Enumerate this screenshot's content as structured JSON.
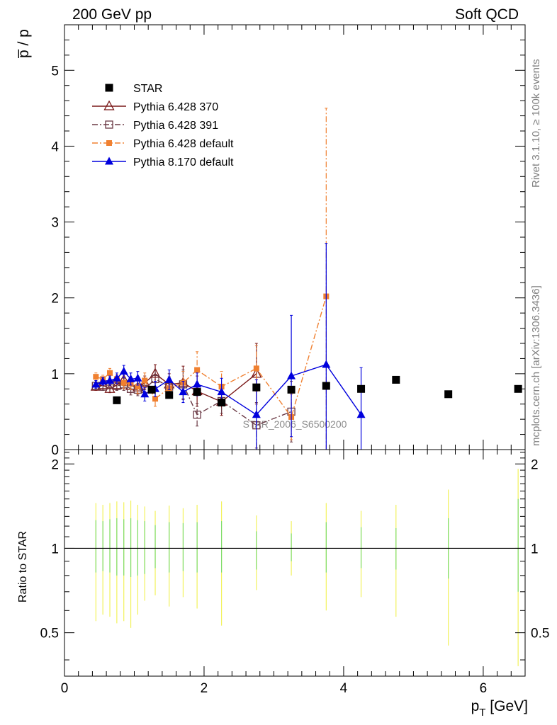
{
  "header": {
    "left": "200 GeV pp",
    "right": "Soft QCD"
  },
  "side_text": {
    "rivet": "Rivet 3.1.10, ≥ 100k events",
    "mcplots": "mcplots.cern.ch [arXiv:1306.3436]"
  },
  "watermark": "STAR_2006_S6500200",
  "chart_data": [
    {
      "type": "line",
      "panel": "main",
      "ylabel": "p̅ / p",
      "ylim": [
        0,
        5.6
      ],
      "xlim": [
        0,
        6.6
      ],
      "yticks": [
        0,
        1,
        2,
        3,
        4,
        5
      ],
      "legend_position": "top-left",
      "series": [
        {
          "name": "STAR",
          "color": "#000000",
          "marker": "filled-square",
          "line": "none",
          "points": [
            {
              "x": 0.75,
              "y": 0.65
            },
            {
              "x": 1.25,
              "y": 0.79
            },
            {
              "x": 1.5,
              "y": 0.72
            },
            {
              "x": 1.9,
              "y": 0.76
            },
            {
              "x": 2.25,
              "y": 0.62
            },
            {
              "x": 2.75,
              "y": 0.82
            },
            {
              "x": 3.25,
              "y": 0.79
            },
            {
              "x": 3.75,
              "y": 0.84
            },
            {
              "x": 4.25,
              "y": 0.8
            },
            {
              "x": 4.75,
              "y": 0.92
            },
            {
              "x": 5.5,
              "y": 0.73
            },
            {
              "x": 6.5,
              "y": 0.8
            }
          ]
        },
        {
          "name": "Pythia 6.428 370",
          "color": "#7a1818",
          "marker": "open-triangle",
          "line": "solid",
          "points": [
            {
              "x": 0.45,
              "y": 0.83,
              "err": 0.05
            },
            {
              "x": 0.55,
              "y": 0.85,
              "err": 0.05
            },
            {
              "x": 0.65,
              "y": 0.8,
              "err": 0.05
            },
            {
              "x": 0.75,
              "y": 0.85,
              "err": 0.06
            },
            {
              "x": 0.85,
              "y": 0.92,
              "err": 0.08
            },
            {
              "x": 0.95,
              "y": 0.84,
              "err": 0.09
            },
            {
              "x": 1.05,
              "y": 0.82,
              "err": 0.09
            },
            {
              "x": 1.15,
              "y": 0.88,
              "err": 0.09
            },
            {
              "x": 1.3,
              "y": 1.0,
              "err": 0.12
            },
            {
              "x": 1.5,
              "y": 0.86,
              "err": 0.14
            },
            {
              "x": 1.7,
              "y": 0.88,
              "err": 0.22
            },
            {
              "x": 1.9,
              "y": 0.77,
              "err": 0.2
            },
            {
              "x": 2.25,
              "y": 0.63,
              "err": 0.18
            },
            {
              "x": 2.75,
              "y": 1.0,
              "err": 0.4
            }
          ]
        },
        {
          "name": "Pythia 6.428 391",
          "color": "#6b3a45",
          "marker": "open-square",
          "line": "dashdot",
          "points": [
            {
              "x": 0.45,
              "y": 0.84,
              "err": 0.05
            },
            {
              "x": 0.55,
              "y": 0.83,
              "err": 0.05
            },
            {
              "x": 0.65,
              "y": 0.86,
              "err": 0.06
            },
            {
              "x": 0.75,
              "y": 0.84,
              "err": 0.06
            },
            {
              "x": 0.85,
              "y": 0.86,
              "err": 0.08
            },
            {
              "x": 0.95,
              "y": 0.8,
              "err": 0.08
            },
            {
              "x": 1.05,
              "y": 0.79,
              "err": 0.08
            },
            {
              "x": 1.15,
              "y": 0.8,
              "err": 0.09
            },
            {
              "x": 1.3,
              "y": 0.93,
              "err": 0.12
            },
            {
              "x": 1.5,
              "y": 0.83,
              "err": 0.13
            },
            {
              "x": 1.7,
              "y": 0.86,
              "err": 0.19
            },
            {
              "x": 1.9,
              "y": 0.46,
              "err": 0.15
            },
            {
              "x": 2.25,
              "y": 0.64,
              "err": 0.16
            },
            {
              "x": 2.75,
              "y": 0.32,
              "err": 0.3
            },
            {
              "x": 3.25,
              "y": 0.5,
              "err": 0.4
            }
          ]
        },
        {
          "name": "Pythia 6.428 default",
          "color": "#f08030",
          "marker": "small-filled-square",
          "line": "dashdot",
          "points": [
            {
              "x": 0.45,
              "y": 0.96,
              "err": 0.05
            },
            {
              "x": 0.55,
              "y": 0.93,
              "err": 0.05
            },
            {
              "x": 0.65,
              "y": 1.01,
              "err": 0.06
            },
            {
              "x": 0.75,
              "y": 0.93,
              "err": 0.06
            },
            {
              "x": 0.85,
              "y": 0.88,
              "err": 0.08
            },
            {
              "x": 0.95,
              "y": 0.87,
              "err": 0.08
            },
            {
              "x": 1.05,
              "y": 0.83,
              "err": 0.09
            },
            {
              "x": 1.15,
              "y": 0.91,
              "err": 0.1
            },
            {
              "x": 1.3,
              "y": 0.67,
              "err": 0.1
            },
            {
              "x": 1.5,
              "y": 0.81,
              "err": 0.13
            },
            {
              "x": 1.7,
              "y": 0.88,
              "err": 0.15
            },
            {
              "x": 1.9,
              "y": 1.05,
              "err": 0.24
            },
            {
              "x": 2.25,
              "y": 0.83,
              "err": 0.2
            },
            {
              "x": 2.75,
              "y": 1.07,
              "err": 0.3
            },
            {
              "x": 3.25,
              "y": 0.43,
              "err": 0.3
            },
            {
              "x": 3.75,
              "y": 2.02,
              "err": 2.48
            }
          ]
        },
        {
          "name": "Pythia 8.170 default",
          "color": "#0000dd",
          "marker": "filled-triangle",
          "line": "solid",
          "points": [
            {
              "x": 0.45,
              "y": 0.86,
              "err": 0.05
            },
            {
              "x": 0.55,
              "y": 0.9,
              "err": 0.05
            },
            {
              "x": 0.65,
              "y": 0.91,
              "err": 0.06
            },
            {
              "x": 0.75,
              "y": 0.94,
              "err": 0.07
            },
            {
              "x": 0.85,
              "y": 1.03,
              "err": 0.08
            },
            {
              "x": 0.95,
              "y": 0.93,
              "err": 0.08
            },
            {
              "x": 1.05,
              "y": 0.94,
              "err": 0.09
            },
            {
              "x": 1.15,
              "y": 0.73,
              "err": 0.09
            },
            {
              "x": 1.3,
              "y": 0.8,
              "err": 0.1
            },
            {
              "x": 1.5,
              "y": 0.92,
              "err": 0.13
            },
            {
              "x": 1.7,
              "y": 0.76,
              "err": 0.14
            },
            {
              "x": 1.9,
              "y": 0.86,
              "err": 0.15
            },
            {
              "x": 2.25,
              "y": 0.76,
              "err": 0.18
            },
            {
              "x": 2.75,
              "y": 0.46,
              "err": 0.46
            },
            {
              "x": 3.25,
              "y": 0.97,
              "err": 0.8
            },
            {
              "x": 3.75,
              "y": 1.12,
              "err": 1.6
            },
            {
              "x": 4.25,
              "y": 0.46,
              "err": 0.62
            }
          ]
        }
      ]
    },
    {
      "type": "line",
      "panel": "ratio",
      "ylabel": "Ratio to STAR",
      "xlabel": "p_T [GeV]",
      "xlim": [
        0,
        6.6
      ],
      "ylim": [
        0.35,
        2.25
      ],
      "yticks": [
        0.5,
        1,
        2
      ],
      "xticks": [
        0,
        2,
        4,
        6
      ],
      "reference_line": 1,
      "uncertainty_bands": [
        {
          "x": 0.45,
          "inner": [
            0.82,
            1.26
          ],
          "outer": [
            0.55,
            1.45
          ]
        },
        {
          "x": 0.55,
          "inner": [
            0.83,
            1.25
          ],
          "outer": [
            0.58,
            1.43
          ]
        },
        {
          "x": 0.65,
          "inner": [
            0.82,
            1.27
          ],
          "outer": [
            0.57,
            1.45
          ]
        },
        {
          "x": 0.75,
          "inner": [
            0.8,
            1.28
          ],
          "outer": [
            0.54,
            1.47
          ]
        },
        {
          "x": 0.85,
          "inner": [
            0.8,
            1.27
          ],
          "outer": [
            0.55,
            1.46
          ]
        },
        {
          "x": 0.95,
          "inner": [
            0.79,
            1.28
          ],
          "outer": [
            0.52,
            1.48
          ]
        },
        {
          "x": 1.05,
          "inner": [
            0.8,
            1.26
          ],
          "outer": [
            0.58,
            1.43
          ]
        },
        {
          "x": 1.15,
          "inner": [
            0.81,
            1.25
          ],
          "outer": [
            0.65,
            1.41
          ]
        },
        {
          "x": 1.3,
          "inner": [
            0.85,
            1.21
          ],
          "outer": [
            0.68,
            1.36
          ]
        },
        {
          "x": 1.5,
          "inner": [
            0.82,
            1.24
          ],
          "outer": [
            0.62,
            1.42
          ]
        },
        {
          "x": 1.7,
          "inner": [
            0.83,
            1.23
          ],
          "outer": [
            0.67,
            1.39
          ]
        },
        {
          "x": 1.9,
          "inner": [
            0.82,
            1.24
          ],
          "outer": [
            0.61,
            1.43
          ]
        },
        {
          "x": 2.25,
          "inner": [
            0.82,
            1.25
          ],
          "outer": [
            0.53,
            1.47
          ]
        },
        {
          "x": 2.75,
          "inner": [
            0.84,
            1.15
          ],
          "outer": [
            0.71,
            1.31
          ]
        },
        {
          "x": 3.25,
          "inner": [
            0.9,
            1.13
          ],
          "outer": [
            0.8,
            1.25
          ]
        },
        {
          "x": 3.75,
          "inner": [
            0.82,
            1.24
          ],
          "outer": [
            0.6,
            1.45
          ]
        },
        {
          "x": 4.25,
          "inner": [
            0.85,
            1.19
          ],
          "outer": [
            0.67,
            1.36
          ]
        },
        {
          "x": 4.75,
          "inner": [
            0.84,
            1.18
          ],
          "outer": [
            0.57,
            1.43
          ]
        },
        {
          "x": 5.5,
          "inner": [
            0.78,
            1.28
          ],
          "outer": [
            0.45,
            1.62
          ]
        },
        {
          "x": 6.5,
          "inner": [
            0.7,
            1.5
          ],
          "outer": [
            0.38,
            1.92
          ]
        }
      ]
    }
  ]
}
